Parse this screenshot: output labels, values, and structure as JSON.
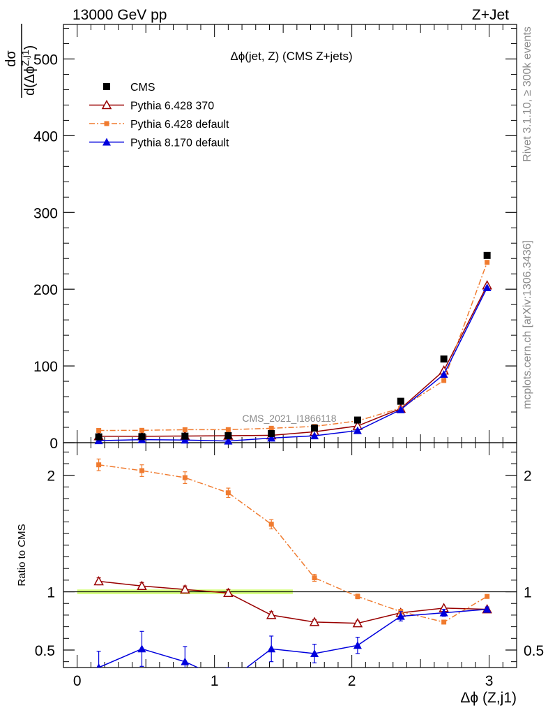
{
  "header": {
    "left": "13000 GeV pp",
    "right": "Z+Jet"
  },
  "side_labels": {
    "rivet": "Rivet 3.1.10, ≥ 300k events",
    "source": "mcplots.cern.ch [arXiv:1306.3436]"
  },
  "chart_data": [
    {
      "type": "scatter",
      "title": "Δϕ(jet, Z) (CMS Z+jets)",
      "ylabel": "dσ / d(Δϕ^{Z,j1})",
      "ylabel_num": "dσ",
      "ylabel_den": "d(Δϕ",
      "ylabel_sup": "Z,j1",
      "ylabel_close": ")",
      "xlim": [
        -0.1,
        3.2
      ],
      "ylim": [
        0,
        545
      ],
      "yticks": [
        0,
        100,
        200,
        300,
        400,
        500
      ],
      "watermark": "CMS_2021_I1866118",
      "legend_position": "top-left",
      "x": [
        0.157,
        0.471,
        0.785,
        1.1,
        1.414,
        1.728,
        2.042,
        2.356,
        2.67,
        2.985
      ],
      "series": [
        {
          "name": "CMS",
          "color": "#000000",
          "marker": "square",
          "line": "none",
          "values": [
            7.6,
            7.9,
            8.5,
            9.2,
            11.9,
            19.0,
            29.5,
            54.0,
            109.0,
            244.0
          ]
        },
        {
          "name": "Pythia 6.428 370",
          "color": "#990000",
          "marker": "open-triangle",
          "line": "solid",
          "values": [
            8.4,
            8.3,
            8.7,
            9.1,
            9.6,
            14.2,
            21.8,
            44.4,
            94.0,
            205.0
          ]
        },
        {
          "name": "Pythia 6.428 default",
          "color": "#f07b2f",
          "marker": "small-square",
          "line": "dashdot",
          "values": [
            15.9,
            16.1,
            16.9,
            17.0,
            18.8,
            21.2,
            28.4,
            45.0,
            81.0,
            235.0
          ]
        },
        {
          "name": "Pythia 8.170 default",
          "color": "#0000dd",
          "marker": "triangle",
          "line": "solid",
          "values": [
            2.6,
            4.0,
            3.4,
            2.2,
            6.0,
            9.0,
            15.8,
            43.0,
            89.0,
            202.0
          ]
        }
      ]
    },
    {
      "type": "line",
      "ylabel": "Ratio to CMS",
      "xlabel": "Δϕ (Z,j1)",
      "xlim": [
        -0.1,
        3.2
      ],
      "ylim": [
        0.35,
        2.28
      ],
      "xticks": [
        0,
        1,
        2,
        3
      ],
      "yticks": [
        0.5,
        1,
        2
      ],
      "x": [
        0.157,
        0.471,
        0.785,
        1.1,
        1.414,
        1.728,
        2.042,
        2.356,
        2.67,
        2.985
      ],
      "band": {
        "xmin": 0.0,
        "xmax": 1.57,
        "low": 0.98,
        "high": 1.02,
        "color": "#ccff66"
      },
      "series": [
        {
          "name": "Pythia 6.428 370",
          "color": "#990000",
          "marker": "open-triangle",
          "line": "solid",
          "values": [
            1.09,
            1.05,
            1.02,
            0.99,
            0.8,
            0.74,
            0.73,
            0.82,
            0.86,
            0.85
          ],
          "errors": [
            0.03,
            0.03,
            0.03,
            0.03,
            0.03,
            0.02,
            0.02,
            0.02,
            0.0,
            0.0
          ]
        },
        {
          "name": "Pythia 6.428 default",
          "color": "#f07b2f",
          "marker": "small-square",
          "line": "dashdot",
          "values": [
            2.09,
            2.04,
            1.98,
            1.85,
            1.58,
            1.12,
            0.96,
            0.83,
            0.74,
            0.96
          ],
          "errors": [
            0.05,
            0.05,
            0.05,
            0.04,
            0.04,
            0.03,
            0.02,
            0.02,
            0.0,
            0.0
          ]
        },
        {
          "name": "Pythia 8.170 default",
          "color": "#0000dd",
          "marker": "triangle",
          "line": "solid",
          "values": [
            0.35,
            0.51,
            0.4,
            0.23,
            0.51,
            0.47,
            0.54,
            0.79,
            0.82,
            0.85
          ],
          "errors": [
            0.14,
            0.15,
            0.13,
            0.12,
            0.11,
            0.08,
            0.07,
            0.04,
            0.03,
            0.02
          ]
        }
      ]
    }
  ]
}
